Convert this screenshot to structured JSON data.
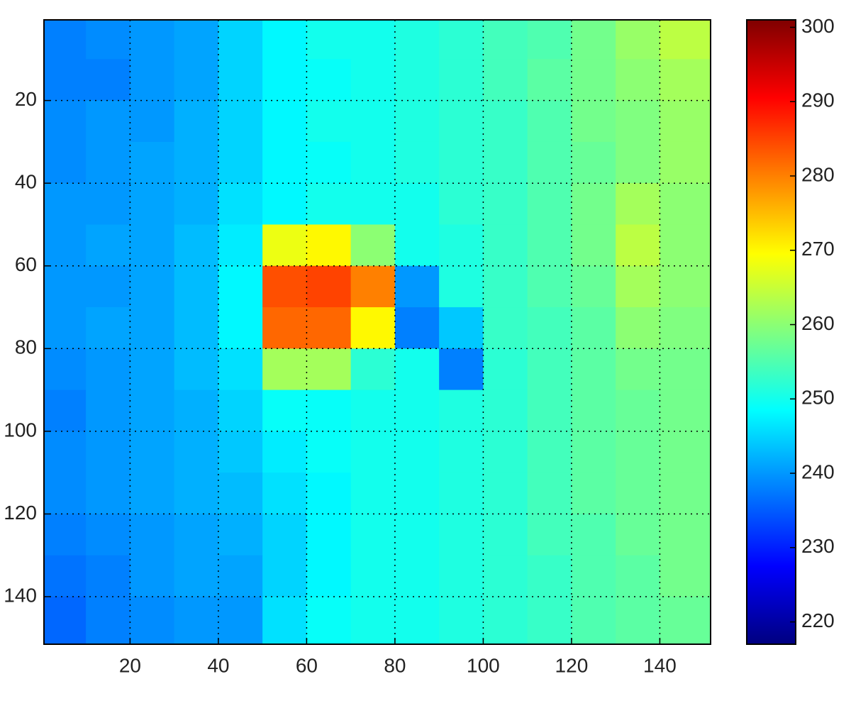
{
  "chart_data": {
    "type": "heatmap",
    "colormap": "jet",
    "grid": true,
    "x": [
      5,
      15,
      25,
      35,
      45,
      55,
      65,
      75,
      85,
      95,
      105,
      115,
      125,
      135,
      145
    ],
    "y": [
      5,
      15,
      25,
      35,
      45,
      55,
      65,
      75,
      85,
      95,
      105,
      115,
      125,
      135,
      145
    ],
    "xlim": [
      0.5,
      151.5
    ],
    "ylim": [
      0.5,
      151.5
    ],
    "xticks": [
      20,
      40,
      60,
      80,
      100,
      120,
      140
    ],
    "yticks": [
      20,
      40,
      60,
      80,
      100,
      120,
      140
    ],
    "clim": [
      217,
      301
    ],
    "cticks": [
      220,
      230,
      240,
      250,
      260,
      270,
      280,
      290,
      300
    ],
    "z": [
      [
        238,
        239,
        240,
        241,
        245,
        248,
        250,
        250,
        251,
        252,
        254,
        255,
        258,
        261,
        264
      ],
      [
        238,
        238,
        240,
        241,
        245,
        248,
        249,
        250,
        251,
        252,
        254,
        256,
        258,
        260,
        262
      ],
      [
        239,
        240,
        240,
        242,
        245,
        248,
        250,
        250,
        251,
        252,
        253,
        255,
        258,
        259,
        261
      ],
      [
        239,
        240,
        241,
        242,
        245,
        248,
        249,
        250,
        251,
        252,
        253,
        255,
        257,
        259,
        261
      ],
      [
        240,
        240,
        241,
        242,
        246,
        248,
        250,
        250,
        250,
        252,
        253,
        255,
        258,
        262,
        260
      ],
      [
        240,
        241,
        241,
        243,
        247,
        268,
        270,
        260,
        250,
        251,
        253,
        255,
        258,
        264,
        260
      ],
      [
        240,
        240,
        241,
        243,
        248,
        284,
        285,
        280,
        240,
        251,
        253,
        255,
        257,
        262,
        260
      ],
      [
        240,
        241,
        241,
        243,
        248,
        282,
        282,
        270,
        238,
        244,
        253,
        254,
        256,
        260,
        259
      ],
      [
        239,
        240,
        241,
        243,
        246,
        262,
        262,
        252,
        250,
        238,
        252,
        254,
        256,
        258,
        258
      ],
      [
        238,
        240,
        241,
        242,
        245,
        249,
        249,
        250,
        250,
        251,
        252,
        254,
        256,
        257,
        258
      ],
      [
        239,
        240,
        241,
        242,
        244,
        247,
        249,
        250,
        250,
        251,
        252,
        254,
        256,
        257,
        258
      ],
      [
        239,
        240,
        241,
        242,
        243,
        246,
        248,
        250,
        250,
        251,
        252,
        254,
        256,
        257,
        258
      ],
      [
        238,
        239,
        240,
        241,
        242,
        245,
        248,
        250,
        250,
        251,
        252,
        254,
        255,
        257,
        258
      ],
      [
        237,
        238,
        240,
        241,
        241,
        245,
        248,
        250,
        250,
        251,
        252,
        253,
        255,
        256,
        258
      ],
      [
        236,
        238,
        239,
        240,
        240,
        246,
        249,
        250,
        250,
        251,
        252,
        253,
        255,
        256,
        257
      ]
    ]
  }
}
